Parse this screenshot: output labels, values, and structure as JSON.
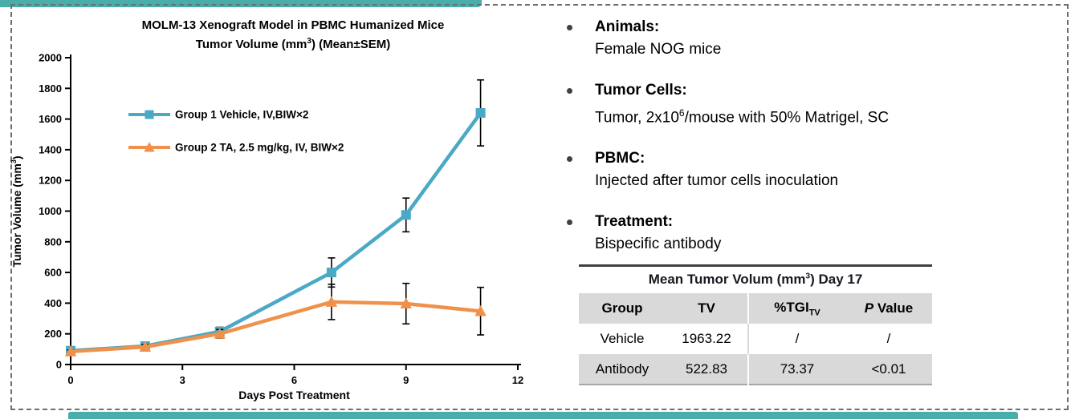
{
  "accent": {
    "bar_color": "#47aeac",
    "frame_color": "#6e6e6e"
  },
  "chart_data": {
    "type": "line",
    "title_line1": "MOLM-13 Xenograft Model in PBMC Humanized Mice",
    "title_line2_pre": "Tumor Volume (mm",
    "title_line2_sup": "3",
    "title_line2_post": ") (Mean±SEM)",
    "xlabel": "Days Post Treatment",
    "ylabel_pre": "Tumor Volume (mm",
    "ylabel_sup": "3",
    "ylabel_post": ")",
    "xlim": [
      0,
      12
    ],
    "ylim": [
      0,
      2000
    ],
    "xticks": [
      0,
      3,
      6,
      9,
      12
    ],
    "yticks": [
      0,
      200,
      400,
      600,
      800,
      1000,
      1200,
      1400,
      1600,
      1800,
      2000
    ],
    "grid": false,
    "legend_position": "upper-left-inside",
    "error_bar_color": "#000000",
    "x": [
      0,
      2,
      4,
      7,
      9,
      11
    ],
    "series": [
      {
        "name": "Group 1 Vehicle, IV,BIW×2",
        "color": "#4aa9c5",
        "marker": "square",
        "values": [
          90,
          120,
          215,
          600,
          975,
          1640
        ],
        "sem": [
          12,
          20,
          28,
          95,
          110,
          215
        ]
      },
      {
        "name": "Group 2 TA, 2.5 mg/kg, IV, BIW×2",
        "color": "#f0914b",
        "marker": "triangle",
        "values": [
          85,
          115,
          200,
          408,
          397,
          348
        ],
        "sem": [
          10,
          15,
          28,
          115,
          132,
          155
        ]
      }
    ]
  },
  "bullets": [
    {
      "heading": "Animals:",
      "body": "Female NOG mice"
    },
    {
      "heading": "Tumor Cells:",
      "body_pre": "Tumor, 2x10",
      "body_sup": "6",
      "body_post": "/mouse with 50% Matrigel, SC"
    },
    {
      "heading": "PBMC:",
      "body": "Injected after tumor cells inoculation"
    },
    {
      "heading": "Treatment:",
      "body": "Bispecific antibody"
    }
  ],
  "results_table": {
    "title_pre": "Mean Tumor Volum (mm",
    "title_sup": "3",
    "title_post": ") Day 17",
    "headers": {
      "group": "Group",
      "tv": "TV",
      "tgi_prefix": "%TGI",
      "tgi_sub": "TV",
      "p_italic": "P",
      "p_rest": " Value"
    },
    "rows": [
      {
        "group": "Vehicle",
        "tv": "1963.22",
        "tgi": "/",
        "p": "/"
      },
      {
        "group": "Antibody",
        "tv": "522.83",
        "tgi": "73.37",
        "p": "<0.01"
      }
    ]
  }
}
